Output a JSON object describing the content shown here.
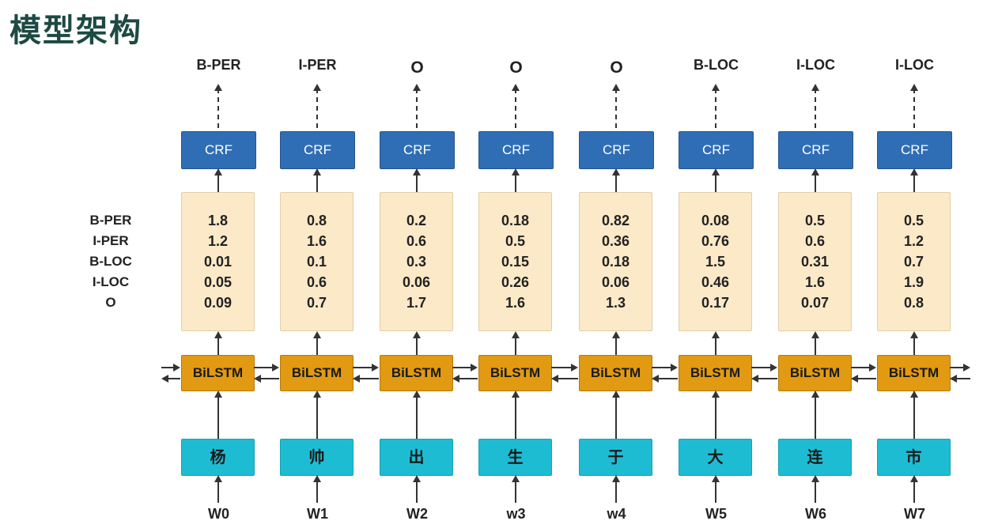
{
  "title": "模型架构",
  "row_labels": [
    "B-PER",
    "I-PER",
    "B-LOC",
    "I-LOC",
    "O"
  ],
  "crf_label": "CRF",
  "bilstm_label": "BiLSTM",
  "columns": [
    {
      "tag": "B-PER",
      "scores": [
        "1.8",
        "1.2",
        "0.01",
        "0.05",
        "0.09"
      ],
      "char": "杨",
      "word": "W0"
    },
    {
      "tag": "I-PER",
      "scores": [
        "0.8",
        "1.6",
        "0.1",
        "0.6",
        "0.7"
      ],
      "char": "帅",
      "word": "W1"
    },
    {
      "tag": "O",
      "scores": [
        "0.2",
        "0.6",
        "0.3",
        "0.06",
        "1.7"
      ],
      "char": "出",
      "word": "W2"
    },
    {
      "tag": "O",
      "scores": [
        "0.18",
        "0.5",
        "0.15",
        "0.26",
        "1.6"
      ],
      "char": "生",
      "word": "w3"
    },
    {
      "tag": "O",
      "scores": [
        "0.82",
        "0.36",
        "0.18",
        "0.06",
        "1.3"
      ],
      "char": "于",
      "word": "w4"
    },
    {
      "tag": "B-LOC",
      "scores": [
        "0.08",
        "0.76",
        "1.5",
        "0.46",
        "0.17"
      ],
      "char": "大",
      "word": "W5"
    },
    {
      "tag": "I-LOC",
      "scores": [
        "0.5",
        "0.6",
        "0.31",
        "1.6",
        "0.07"
      ],
      "char": "连",
      "word": "W6"
    },
    {
      "tag": "I-LOC",
      "scores": [
        "0.5",
        "1.2",
        "0.7",
        "1.9",
        "0.8"
      ],
      "char": "市",
      "word": "W7"
    }
  ]
}
